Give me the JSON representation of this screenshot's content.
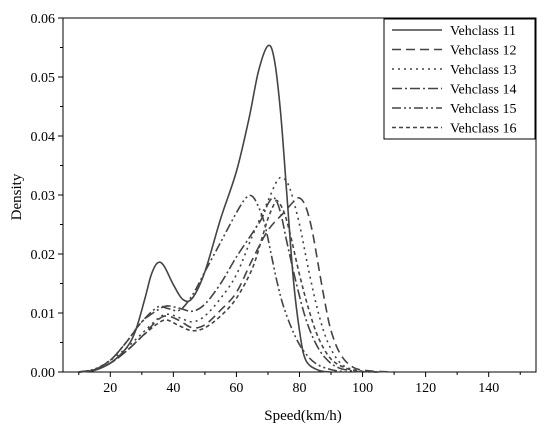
{
  "chart_data": {
    "type": "line",
    "xlabel": "Speed(km/h)",
    "ylabel": "Density",
    "xlim": [
      5,
      155
    ],
    "ylim": [
      0,
      0.06
    ],
    "xticks": [
      20,
      40,
      60,
      80,
      100,
      120,
      140
    ],
    "yticks": [
      0.0,
      0.01,
      0.02,
      0.03,
      0.04,
      0.05,
      0.06
    ],
    "xtick_labels": [
      "20",
      "40",
      "60",
      "80",
      "100",
      "120",
      "140"
    ],
    "ytick_labels": [
      "0.00",
      "0.01",
      "0.02",
      "0.03",
      "0.04",
      "0.05",
      "0.06"
    ],
    "grid": false,
    "legend_position": "top-right",
    "line_color": "#444444",
    "series": [
      {
        "name": "Vehclass 11",
        "dash": "solid",
        "points": [
          [
            10,
            0
          ],
          [
            15,
            0.0003
          ],
          [
            20,
            0.0015
          ],
          [
            25,
            0.004
          ],
          [
            28,
            0.007
          ],
          [
            31,
            0.0125
          ],
          [
            33,
            0.0165
          ],
          [
            35,
            0.0185
          ],
          [
            37,
            0.018
          ],
          [
            40,
            0.0148
          ],
          [
            43,
            0.0123
          ],
          [
            46,
            0.0125
          ],
          [
            50,
            0.017
          ],
          [
            55,
            0.026
          ],
          [
            60,
            0.034
          ],
          [
            64,
            0.043
          ],
          [
            67,
            0.051
          ],
          [
            70,
            0.0553
          ],
          [
            72,
            0.053
          ],
          [
            74,
            0.044
          ],
          [
            76,
            0.03
          ],
          [
            78,
            0.016
          ],
          [
            80,
            0.007
          ],
          [
            82,
            0.002
          ],
          [
            86,
            0.0003
          ],
          [
            90,
            0
          ]
        ]
      },
      {
        "name": "Vehclass 12",
        "dash": "dashed",
        "points": [
          [
            10,
            0
          ],
          [
            15,
            0.0003
          ],
          [
            20,
            0.0015
          ],
          [
            25,
            0.0035
          ],
          [
            30,
            0.006
          ],
          [
            35,
            0.0088
          ],
          [
            38,
            0.0095
          ],
          [
            42,
            0.0087
          ],
          [
            46,
            0.0075
          ],
          [
            50,
            0.008
          ],
          [
            55,
            0.0105
          ],
          [
            60,
            0.0135
          ],
          [
            65,
            0.019
          ],
          [
            70,
            0.024
          ],
          [
            75,
            0.027
          ],
          [
            78,
            0.0288
          ],
          [
            80,
            0.0295
          ],
          [
            82,
            0.028
          ],
          [
            84,
            0.024
          ],
          [
            86,
            0.018
          ],
          [
            88,
            0.012
          ],
          [
            90,
            0.007
          ],
          [
            93,
            0.003
          ],
          [
            97,
            0.0008
          ],
          [
            102,
            0.0002
          ],
          [
            110,
            0
          ]
        ]
      },
      {
        "name": "Vehclass 13",
        "dash": "dotted",
        "points": [
          [
            10,
            0
          ],
          [
            15,
            0.0004
          ],
          [
            20,
            0.002
          ],
          [
            25,
            0.004
          ],
          [
            30,
            0.0065
          ],
          [
            35,
            0.009
          ],
          [
            38,
            0.0098
          ],
          [
            42,
            0.0092
          ],
          [
            46,
            0.0085
          ],
          [
            50,
            0.0095
          ],
          [
            55,
            0.0125
          ],
          [
            60,
            0.0165
          ],
          [
            65,
            0.023
          ],
          [
            70,
            0.029
          ],
          [
            73,
            0.0325
          ],
          [
            75,
            0.0328
          ],
          [
            77,
            0.031
          ],
          [
            80,
            0.025
          ],
          [
            83,
            0.017
          ],
          [
            86,
            0.01
          ],
          [
            89,
            0.005
          ],
          [
            93,
            0.0015
          ],
          [
            98,
            0.0003
          ],
          [
            105,
            0
          ]
        ]
      },
      {
        "name": "Vehclass 14",
        "dash": "dashdot",
        "points": [
          [
            10,
            0
          ],
          [
            15,
            0.0004
          ],
          [
            20,
            0.002
          ],
          [
            25,
            0.005
          ],
          [
            30,
            0.0085
          ],
          [
            35,
            0.0105
          ],
          [
            38,
            0.0112
          ],
          [
            42,
            0.0108
          ],
          [
            46,
            0.0103
          ],
          [
            50,
            0.0115
          ],
          [
            55,
            0.015
          ],
          [
            60,
            0.0195
          ],
          [
            65,
            0.0235
          ],
          [
            68,
            0.026
          ],
          [
            70,
            0.0285
          ],
          [
            72,
            0.0295
          ],
          [
            74,
            0.027
          ],
          [
            76,
            0.022
          ],
          [
            79,
            0.015
          ],
          [
            82,
            0.009
          ],
          [
            85,
            0.005
          ],
          [
            88,
            0.0025
          ],
          [
            92,
            0.0008
          ],
          [
            98,
            0.0001
          ],
          [
            105,
            0
          ]
        ]
      },
      {
        "name": "Vehclass 15",
        "dash": "dashdotdot",
        "points": [
          [
            10,
            0
          ],
          [
            15,
            0.0005
          ],
          [
            20,
            0.002
          ],
          [
            25,
            0.005
          ],
          [
            30,
            0.0085
          ],
          [
            35,
            0.011
          ],
          [
            38,
            0.0108
          ],
          [
            42,
            0.0105
          ],
          [
            46,
            0.013
          ],
          [
            50,
            0.017
          ],
          [
            55,
            0.022
          ],
          [
            60,
            0.027
          ],
          [
            63,
            0.0295
          ],
          [
            65,
            0.0298
          ],
          [
            67,
            0.028
          ],
          [
            69,
            0.025
          ],
          [
            71,
            0.02
          ],
          [
            73,
            0.015
          ],
          [
            75,
            0.011
          ],
          [
            78,
            0.0068
          ],
          [
            81,
            0.0038
          ],
          [
            85,
            0.0015
          ],
          [
            90,
            0.0004
          ],
          [
            95,
            0
          ]
        ]
      },
      {
        "name": "Vehclass 16",
        "dash": "shortdash",
        "points": [
          [
            10,
            0
          ],
          [
            15,
            0.0004
          ],
          [
            20,
            0.0015
          ],
          [
            25,
            0.0035
          ],
          [
            30,
            0.006
          ],
          [
            35,
            0.0082
          ],
          [
            38,
            0.0088
          ],
          [
            42,
            0.0078
          ],
          [
            46,
            0.007
          ],
          [
            50,
            0.0075
          ],
          [
            55,
            0.0095
          ],
          [
            60,
            0.0125
          ],
          [
            65,
            0.0175
          ],
          [
            68,
            0.0225
          ],
          [
            70,
            0.026
          ],
          [
            72,
            0.0285
          ],
          [
            73,
            0.029
          ],
          [
            75,
            0.0272
          ],
          [
            77,
            0.0235
          ],
          [
            80,
            0.0165
          ],
          [
            83,
            0.0105
          ],
          [
            86,
            0.0058
          ],
          [
            90,
            0.0022
          ],
          [
            95,
            0.0006
          ],
          [
            100,
            0.0001
          ],
          [
            105,
            0
          ]
        ]
      }
    ]
  }
}
